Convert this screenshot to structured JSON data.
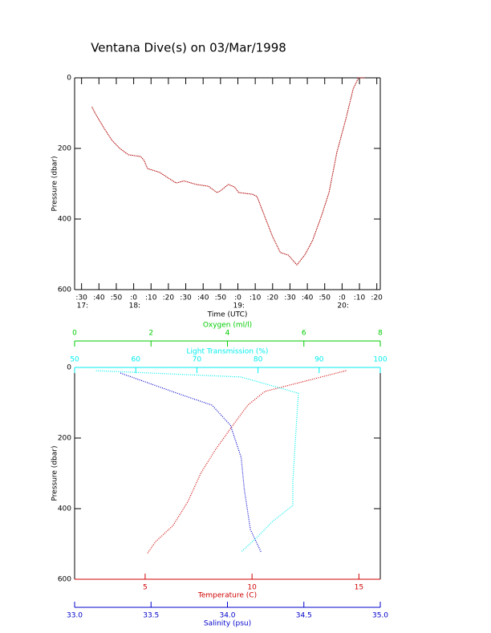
{
  "chart_data": [
    {
      "type": "line",
      "title": "Ventana Dive(s) on 03/Mar/1998",
      "x_label": "Time (UTC)",
      "y_label": "Pressure (dbar)",
      "xlim": [
        26,
        202
      ],
      "ylim": [
        0,
        600
      ],
      "y_inverted": true,
      "color": "#b00000",
      "xticks": [
        {
          "value": 30,
          "label": ":30"
        },
        {
          "value": 40,
          "label": ":40"
        },
        {
          "value": 50,
          "label": ":50"
        },
        {
          "value": 60,
          "label": ":0"
        },
        {
          "value": 70,
          "label": ":10"
        },
        {
          "value": 80,
          "label": ":20"
        },
        {
          "value": 90,
          "label": ":30"
        },
        {
          "value": 100,
          "label": ":40"
        },
        {
          "value": 110,
          "label": ":50"
        },
        {
          "value": 120,
          "label": ":0"
        },
        {
          "value": 130,
          "label": ":10"
        },
        {
          "value": 140,
          "label": ":20"
        },
        {
          "value": 150,
          "label": ":30"
        },
        {
          "value": 160,
          "label": ":40"
        },
        {
          "value": 170,
          "label": ":50"
        },
        {
          "value": 180,
          "label": ":0"
        },
        {
          "value": 190,
          "label": ":10"
        },
        {
          "value": 200,
          "label": ":20"
        }
      ],
      "hour_labels": [
        {
          "value": 30,
          "label": "17:"
        },
        {
          "value": 60,
          "label": "18:"
        },
        {
          "value": 120,
          "label": "19:"
        },
        {
          "value": 180,
          "label": "20:"
        }
      ],
      "yticks": [
        0,
        200,
        400,
        600
      ],
      "x": [
        36,
        38,
        43,
        47.5,
        52,
        57,
        64,
        66,
        68,
        75,
        80,
        84.5,
        89,
        96,
        103,
        108,
        110,
        114.5,
        118,
        120.5,
        128.5,
        131,
        135.5,
        140,
        144.5,
        149,
        154,
        158.5,
        163,
        168,
        172.5,
        177,
        182,
        186.5,
        189.5,
        193
      ],
      "values": [
        82,
        102,
        143,
        177,
        200,
        218,
        223,
        234,
        257,
        268,
        284,
        298,
        292,
        302,
        307,
        325,
        320,
        302,
        309,
        325,
        330,
        336,
        393,
        450,
        495,
        502,
        530,
        502,
        461,
        393,
        325,
        211,
        120,
        30,
        0,
        0
      ]
    },
    {
      "type": "line",
      "y_label": "Pressure (dbar)",
      "ylim": [
        0,
        600
      ],
      "y_inverted": true,
      "yticks": [
        0,
        200,
        400,
        600
      ],
      "x_axes": [
        {
          "label": "Oxygen (ml/l)",
          "color": "#00cc00",
          "lim": [
            0,
            8
          ],
          "ticks": [
            0,
            2,
            4,
            6,
            8
          ],
          "position": "top-outer"
        },
        {
          "label": "Light Transmission (%)",
          "color": "#00eeee",
          "lim": [
            50,
            100
          ],
          "ticks": [
            50,
            60,
            70,
            80,
            90,
            100
          ],
          "position": "top"
        },
        {
          "label": "Temperature (C)",
          "color": "#d00000",
          "lim": [
            1.7,
            16
          ],
          "ticks": [
            5,
            10,
            15
          ],
          "position": "bottom"
        },
        {
          "label": "Salinity (psu)",
          "color": "#0000cc",
          "lim": [
            33,
            35
          ],
          "ticks": [
            {
              "value": 33,
              "label": "33.0"
            },
            33.5,
            {
              "value": 34,
              "label": "34.0"
            },
            34.5,
            {
              "value": 35,
              "label": "35.0"
            }
          ],
          "position": "bottom-outer"
        }
      ],
      "series": [
        {
          "axis": 2,
          "x": [
            14.4,
            10.6,
            9.8,
            9.1,
            8.3,
            7.6,
            7.0,
            6.3,
            5.5,
            5.1
          ],
          "values": [
            9,
            68,
            107,
            164,
            232,
            300,
            380,
            448,
            493,
            527
          ]
        },
        {
          "axis": 3,
          "x": [
            33.3,
            33.67,
            33.9,
            34.02,
            34.09,
            34.11,
            34.15,
            34.22
          ],
          "values": [
            16,
            73,
            107,
            164,
            255,
            345,
            459,
            523
          ]
        },
        {
          "axis": 1,
          "x": [
            53.5,
            77.2,
            86.6,
            86.1,
            85.7,
            85.7,
            82.4,
            79.8,
            77.2
          ],
          "values": [
            9,
            27,
            73,
            209,
            323,
            391,
            436,
            482,
            523
          ]
        }
      ]
    }
  ]
}
